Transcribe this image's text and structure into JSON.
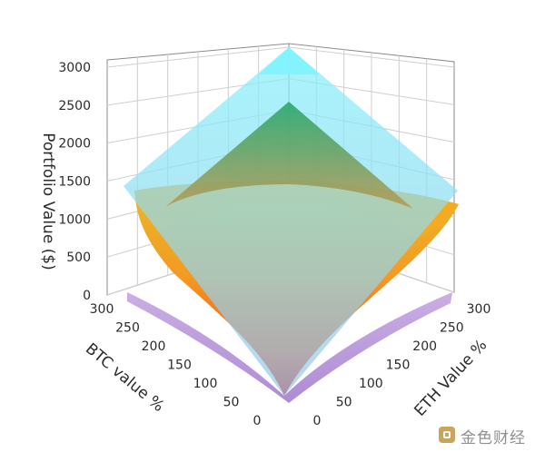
{
  "chart_data": {
    "type": "surface3d",
    "title": "",
    "zlabel": "Portfolio Value ($)",
    "xlabel": "BTC value %",
    "ylabel": "ETH Value %",
    "z_ticks": [
      "0",
      "500",
      "1000",
      "1500",
      "2000",
      "2500",
      "3000"
    ],
    "x_ticks": [
      "0",
      "50",
      "100",
      "150",
      "200",
      "250",
      "300"
    ],
    "y_ticks": [
      "0",
      "50",
      "100",
      "150",
      "200",
      "250",
      "300"
    ],
    "xlim": [
      0,
      300
    ],
    "ylim": [
      0,
      300
    ],
    "zlim": [
      0,
      3000
    ],
    "grid": true,
    "surfaces": [
      {
        "shape": "plane",
        "colors": [
          "#7ee8f5",
          "#9ec3e8"
        ],
        "opacity": 0.6,
        "corner_values": {
          "x0_y0": 0,
          "x300_y0": 1500,
          "x0_y300": 1500,
          "x300_y300": 3000
        }
      },
      {
        "shape": "sqrt_product",
        "colors": [
          "#d60f0f",
          "#f08a1a",
          "#f4a626",
          "#e8b72a"
        ],
        "opacity": 0.95,
        "corner_values": {
          "x0_y0": 0,
          "x300_y0": 0,
          "x0_y300": 0,
          "x300_y300": 1500
        }
      },
      {
        "shape": "sqrt_product_underside",
        "colors": [
          "#b592d8"
        ],
        "opacity": 0.85
      }
    ]
  },
  "watermark": {
    "text": "金色财经"
  }
}
